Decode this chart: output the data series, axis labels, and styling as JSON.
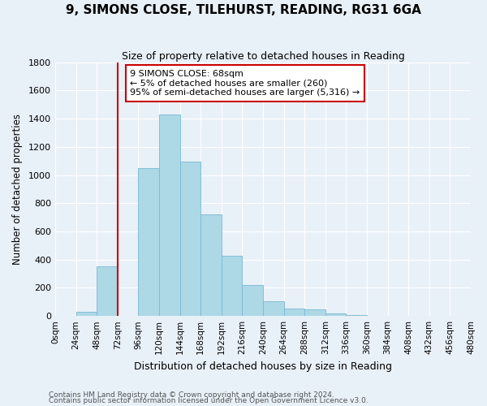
{
  "title": "9, SIMONS CLOSE, TILEHURST, READING, RG31 6GA",
  "subtitle": "Size of property relative to detached houses in Reading",
  "xlabel": "Distribution of detached houses by size in Reading",
  "ylabel": "Number of detached properties",
  "footnote1": "Contains HM Land Registry data © Crown copyright and database right 2024.",
  "footnote2": "Contains public sector information licensed under the Open Government Licence v3.0.",
  "bin_edges": [
    0,
    24,
    48,
    72,
    96,
    120,
    144,
    168,
    192,
    216,
    240,
    264,
    288,
    312,
    336,
    360,
    384,
    408,
    432,
    456,
    480
  ],
  "bin_labels": [
    "0sqm",
    "24sqm",
    "48sqm",
    "72sqm",
    "96sqm",
    "120sqm",
    "144sqm",
    "168sqm",
    "192sqm",
    "216sqm",
    "240sqm",
    "264sqm",
    "288sqm",
    "312sqm",
    "336sqm",
    "360sqm",
    "384sqm",
    "408sqm",
    "432sqm",
    "456sqm",
    "480sqm"
  ],
  "bar_heights": [
    0,
    30,
    350,
    0,
    1050,
    1430,
    1095,
    720,
    430,
    220,
    105,
    55,
    45,
    20,
    5,
    3,
    0,
    0,
    0,
    0
  ],
  "bar_color": "#add8e6",
  "bar_edge_color": "#7ab8d4",
  "vline_x": 72,
  "vline_color": "#cc0000",
  "annotation_title": "9 SIMONS CLOSE: 68sqm",
  "annotation_line1": "← 5% of detached houses are smaller (260)",
  "annotation_line2": "95% of semi-detached houses are larger (5,316) →",
  "annotation_box_color": "#ffffff",
  "annotation_box_edge": "#cc0000",
  "ylim": [
    0,
    1800
  ],
  "yticks": [
    0,
    200,
    400,
    600,
    800,
    1000,
    1200,
    1400,
    1600,
    1800
  ],
  "background_color": "#e8f0f8",
  "grid_color": "#d0dcea"
}
